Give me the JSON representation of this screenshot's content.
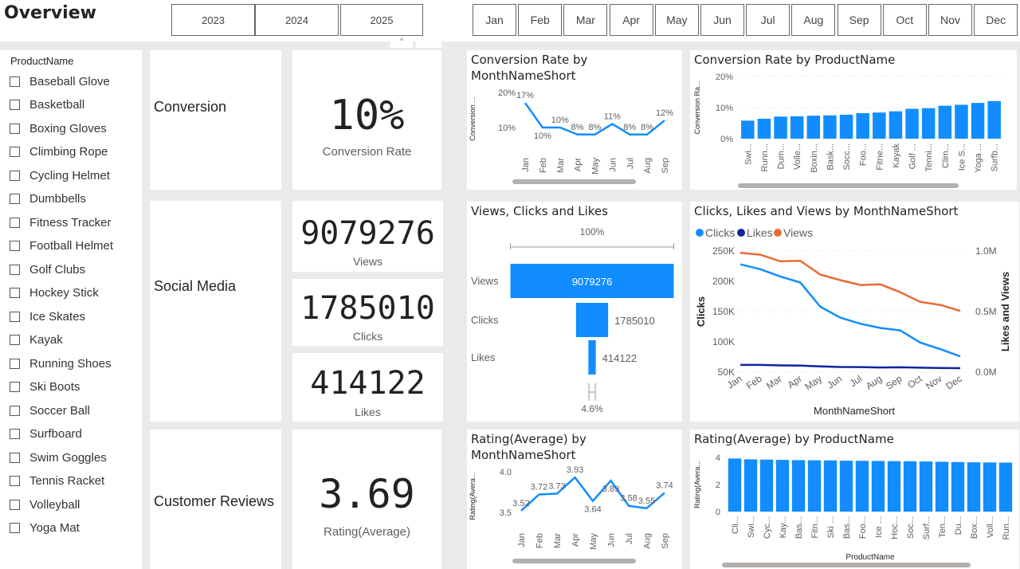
{
  "header": {
    "title": "Overview"
  },
  "years": [
    "2023",
    "2024",
    "2025"
  ],
  "months": [
    "Jan",
    "Feb",
    "Mar",
    "Apr",
    "May",
    "Jun",
    "Jul",
    "Aug",
    "Sep",
    "Oct",
    "Nov",
    "Dec"
  ],
  "product_slicer": {
    "title": "ProductName",
    "items": [
      "Baseball Glove",
      "Basketball",
      "Boxing Gloves",
      "Climbing Rope",
      "Cycling Helmet",
      "Dumbbells",
      "Fitness Tracker",
      "Football Helmet",
      "Golf Clubs",
      "Hockey Stick",
      "Ice Skates",
      "Kayak",
      "Running Shoes",
      "Ski Boots",
      "Soccer Ball",
      "Surfboard",
      "Swim Goggles",
      "Tennis Racket",
      "Volleyball",
      "Yoga Mat"
    ]
  },
  "sections": {
    "conversion": "Conversion",
    "social": "Social Media",
    "reviews": "Customer Reviews"
  },
  "kpis": {
    "conversion": {
      "value": "10%",
      "label": "Conversion Rate"
    },
    "views": {
      "value": "9079276",
      "label": "Views"
    },
    "clicks": {
      "value": "1785010",
      "label": "Clicks"
    },
    "likes": {
      "value": "414122",
      "label": "Likes"
    },
    "rating": {
      "value": "3.69",
      "label": "Rating(Average)"
    }
  },
  "chart_data": [
    {
      "id": "conv_month",
      "type": "line",
      "title": "Conversion Rate by MonthNameShort",
      "ylabel": "Conversion ...",
      "categories": [
        "Jan",
        "Feb",
        "Mar",
        "Apr",
        "May",
        "Jun",
        "Jul",
        "Aug",
        "Sep"
      ],
      "values": [
        17,
        10,
        10,
        8,
        8,
        11,
        8,
        8,
        12
      ],
      "data_labels": [
        "17%",
        "10%",
        "10%",
        "8%",
        "8%",
        "11%",
        "8%",
        "8%",
        "12%"
      ],
      "yticks": [
        "20%",
        "10%"
      ],
      "ylim": [
        5,
        20
      ],
      "color": "#118dff"
    },
    {
      "id": "conv_product",
      "type": "bar",
      "title": "Conversion Rate by ProductName",
      "ylabel": "Conversion Ra...",
      "categories": [
        "Swi...",
        "Runn...",
        "Dum...",
        "Volle...",
        "Boxin...",
        "Bask...",
        "Socc...",
        "Foo...",
        "Fitne...",
        "Kayak",
        "Golf ...",
        "Tenni...",
        "Clim...",
        "Ice S...",
        "Yoga ...",
        "Surfb..."
      ],
      "values": [
        5.8,
        6.4,
        7.1,
        7.2,
        7.4,
        7.5,
        7.7,
        8.2,
        8.4,
        8.8,
        9.6,
        9.8,
        10.6,
        10.9,
        11.5,
        12.1
      ],
      "yticks": [
        "20%",
        "10%",
        "0%"
      ],
      "ylim": [
        0,
        20
      ],
      "color": "#118dff"
    },
    {
      "id": "funnel",
      "type": "bar",
      "title": "Views, Clicks and Likes",
      "categories": [
        "Views",
        "Clicks",
        "Likes"
      ],
      "values": [
        9079276,
        1785010,
        414122
      ],
      "top_label": "100%",
      "bottom_label": "4.6%",
      "color": "#118dff"
    },
    {
      "id": "social_month",
      "type": "line",
      "title": "Clicks, Likes and Views by MonthNameShort",
      "xlabel": "MonthNameShort",
      "ylabel": "Clicks",
      "y2label": "Likes and Views",
      "categories": [
        "Jan",
        "Feb",
        "Mar",
        "Apr",
        "May",
        "Jun",
        "Jul",
        "Aug",
        "Sep",
        "Oct",
        "Nov",
        "Dec"
      ],
      "yticks": [
        "250K",
        "200K",
        "150K",
        "100K",
        "50K"
      ],
      "y2ticks": [
        "1.0M",
        "0.5M",
        "0.0M"
      ],
      "ylim": [
        50000,
        250000
      ],
      "y2lim": [
        0,
        1000000
      ],
      "series": [
        {
          "name": "Clicks",
          "axis": "left",
          "color": "#118dff",
          "values": [
            228000,
            220000,
            208000,
            198000,
            158000,
            140000,
            130000,
            123000,
            119000,
            99000,
            88000,
            76000
          ]
        },
        {
          "name": "Likes",
          "axis": "right",
          "color": "#12239e",
          "values": [
            60000,
            60000,
            56000,
            54000,
            48000,
            43000,
            42000,
            39000,
            40000,
            37000,
            34000,
            33000
          ]
        },
        {
          "name": "Views",
          "axis": "right",
          "color": "#e66c37",
          "values": [
            985000,
            970000,
            915000,
            920000,
            805000,
            760000,
            720000,
            725000,
            660000,
            580000,
            555000,
            505000
          ]
        }
      ]
    },
    {
      "id": "rating_month",
      "type": "line",
      "title": "Rating(Average) by MonthNameShort",
      "ylabel": "Rating(Avera...",
      "categories": [
        "Jan",
        "Feb",
        "Mar",
        "Apr",
        "May",
        "Jun",
        "Jul",
        "Aug",
        "Sep"
      ],
      "values": [
        3.52,
        3.72,
        3.73,
        3.93,
        3.64,
        3.89,
        3.58,
        3.55,
        3.74
      ],
      "data_labels": [
        "3.52",
        "3.72",
        "3.73",
        "3.93",
        "3.64",
        "3.89",
        "3.58",
        "3.55",
        "3.74"
      ],
      "yticks": [
        "4.0",
        "3.5"
      ],
      "ylim": [
        3.4,
        4.0
      ],
      "color": "#118dff"
    },
    {
      "id": "rating_product",
      "type": "bar",
      "title": "Rating(Average) by ProductName",
      "xlabel": "ProductName",
      "ylabel": "Rating(Avera...",
      "categories": [
        "Cli...",
        "Swi...",
        "Cyc...",
        "Kay...",
        "Bas...",
        "Fitn...",
        "Ski ...",
        "Bas...",
        "Foo...",
        "Ice ...",
        "Hoc...",
        "Soc...",
        "Surf...",
        "Ten...",
        "Du...",
        "Box...",
        "Voll...",
        "Run..."
      ],
      "values": [
        3.92,
        3.86,
        3.84,
        3.82,
        3.8,
        3.79,
        3.78,
        3.76,
        3.75,
        3.74,
        3.73,
        3.72,
        3.7,
        3.68,
        3.66,
        3.64,
        3.63,
        3.62
      ],
      "yticks": [
        "4",
        "2",
        "0"
      ],
      "ylim": [
        0,
        4
      ],
      "color": "#118dff"
    }
  ]
}
